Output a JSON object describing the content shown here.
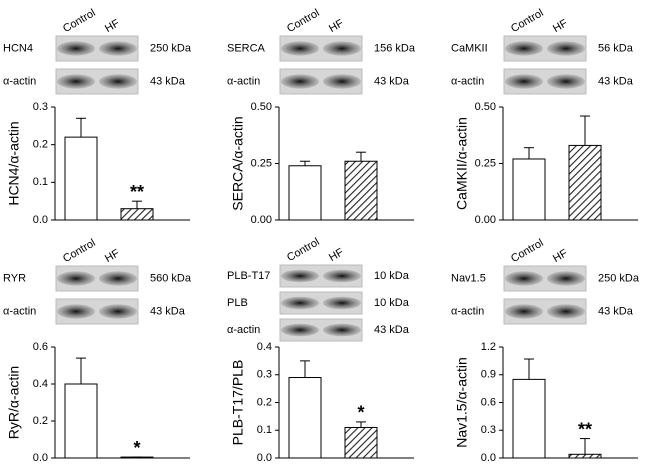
{
  "chart_data": [
    {
      "type": "bar",
      "ylabel": "HCN4/α-actin",
      "categories": [
        "Control",
        "HF"
      ],
      "values": [
        0.22,
        0.03
      ],
      "errors": [
        0.05,
        0.02
      ],
      "value_annotations": [
        null,
        "**"
      ],
      "bar_styles": [
        "open",
        "hatched"
      ],
      "ylim": [
        0,
        0.3
      ],
      "yticks": [
        {
          "value": 0,
          "label": "0.0"
        },
        0.1,
        0.2,
        0.3
      ],
      "blots": [
        {
          "label": "HCN4",
          "size": "250 kDa"
        },
        {
          "label": "α-actin",
          "size": "43 kDa"
        }
      ]
    },
    {
      "type": "bar",
      "ylabel": "SERCA/α-actin",
      "categories": [
        "Control",
        "HF"
      ],
      "values": [
        0.24,
        0.26
      ],
      "errors": [
        0.02,
        0.04
      ],
      "value_annotations": [
        null,
        null
      ],
      "bar_styles": [
        "open",
        "hatched"
      ],
      "ylim": [
        0,
        0.5
      ],
      "yticks": [
        {
          "value": 0,
          "label": "0.00"
        },
        0.25,
        {
          "value": 0.5,
          "label": "0.50"
        }
      ],
      "blots": [
        {
          "label": "SERCA",
          "size": "156 kDa"
        },
        {
          "label": "α-actin",
          "size": "43 kDa"
        }
      ]
    },
    {
      "type": "bar",
      "ylabel": "CaMKII/α-actin",
      "categories": [
        "Control",
        "HF"
      ],
      "values": [
        0.27,
        0.33
      ],
      "errors": [
        0.05,
        0.13
      ],
      "value_annotations": [
        null,
        null
      ],
      "bar_styles": [
        "open",
        "hatched"
      ],
      "ylim": [
        0,
        0.5
      ],
      "yticks": [
        {
          "value": 0,
          "label": "0.00"
        },
        0.25,
        {
          "value": 0.5,
          "label": "0.50"
        }
      ],
      "blots": [
        {
          "label": "CaMKII",
          "size": "56 kDa"
        },
        {
          "label": "α-actin",
          "size": "43 kDa"
        }
      ]
    },
    {
      "type": "bar",
      "ylabel": "RyR/α-actin",
      "categories": [
        "Control",
        "HF"
      ],
      "values": [
        0.4,
        0.005
      ],
      "errors": [
        0.14,
        0
      ],
      "value_annotations": [
        null,
        "*"
      ],
      "bar_styles": [
        "open",
        "hatched"
      ],
      "ylim": [
        0,
        0.6
      ],
      "yticks": [
        {
          "value": 0,
          "label": "0.0"
        },
        0.2,
        0.4,
        0.6
      ],
      "blots": [
        {
          "label": "RYR",
          "size": "560 kDa"
        },
        {
          "label": "α-actin",
          "size": "43 kDa"
        }
      ]
    },
    {
      "type": "bar",
      "ylabel": "PLB-T17/PLB",
      "categories": [
        "Control",
        "HF"
      ],
      "values": [
        0.29,
        0.11
      ],
      "errors": [
        0.06,
        0.02
      ],
      "value_annotations": [
        null,
        "*"
      ],
      "bar_styles": [
        "open",
        "hatched"
      ],
      "ylim": [
        0,
        0.4
      ],
      "yticks": [
        {
          "value": 0,
          "label": "0.0"
        },
        0.1,
        0.2,
        0.3,
        0.4
      ],
      "blots": [
        {
          "label": "PLB-T17",
          "size": "10 kDa"
        },
        {
          "label": "PLB",
          "size": "10 kDa"
        },
        {
          "label": "α-actin",
          "size": "43 kDa"
        }
      ]
    },
    {
      "type": "bar",
      "ylabel": "Nav1.5/α-actin",
      "categories": [
        "Control",
        "HF"
      ],
      "values": [
        0.85,
        0.04
      ],
      "errors": [
        0.22,
        0.17
      ],
      "value_annotations": [
        null,
        "**"
      ],
      "bar_styles": [
        "open",
        "hatched"
      ],
      "ylim": [
        0,
        1.2
      ],
      "yticks": [
        {
          "value": 0,
          "label": "0.0"
        },
        0.3,
        0.6,
        0.9,
        1.2
      ],
      "blots": [
        {
          "label": "Nav1.5",
          "size": "250 kDa"
        },
        {
          "label": "α-actin",
          "size": "43 kDa"
        }
      ]
    }
  ]
}
